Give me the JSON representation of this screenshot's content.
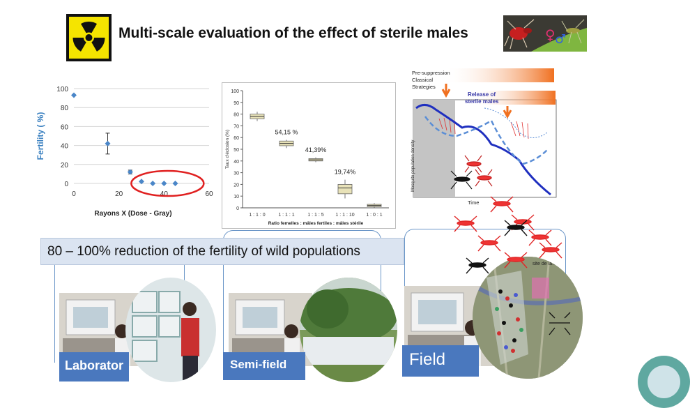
{
  "title": "Multi-scale evaluation of the effect of sterile males",
  "icons": {
    "radiation": "radiation-icon",
    "mosquito": "mosquito-icon"
  },
  "colors": {
    "accent": "#4a78be",
    "bracket": "#6a96c8",
    "banner": "#dbe4f1",
    "highlight_circle": "#e02020",
    "decline_line": "#1f2fbf",
    "dashed_line": "#5b8ed6",
    "arrow_orange": "#f07020"
  },
  "chart_fertility": {
    "chart_data": {
      "type": "scatter",
      "x": [
        0,
        15,
        25,
        30,
        35,
        40,
        45
      ],
      "y": [
        93,
        42,
        12,
        2,
        0,
        0,
        0
      ],
      "error": [
        0,
        11,
        2,
        0,
        0,
        0,
        0
      ],
      "xlim": [
        0,
        60
      ],
      "ylim": [
        0,
        100
      ],
      "xticks": [
        "0",
        "20",
        "40",
        "60"
      ],
      "yticks": [
        "0",
        "20",
        "40",
        "60",
        "80",
        "100"
      ],
      "xlabel": "Rayons X (Dose - Gray)",
      "ylabel": "Fertility ( %)",
      "grid": true,
      "highlight": "red ellipse around doses 35-45"
    }
  },
  "chart_hatching": {
    "chart_data": {
      "type": "box",
      "categories": [
        "1 : 1 : 0",
        "1 : 1 : 1",
        "1 : 1 : 5",
        "1 : 1 : 10",
        "1 : 0 : 1"
      ],
      "medians": [
        78,
        55,
        41,
        17,
        2
      ],
      "q1": [
        76,
        53,
        40,
        12,
        1
      ],
      "q3": [
        80,
        57,
        42,
        20,
        3
      ],
      "min": [
        74,
        51,
        39,
        8,
        0
      ],
      "max": [
        82,
        58,
        43,
        24,
        4
      ],
      "annotations": [
        "",
        "54,15 %",
        "41,39%",
        "19,74%",
        ""
      ],
      "ylim": [
        0,
        100
      ],
      "yticks": [
        "0",
        "10",
        "20",
        "30",
        "40",
        "50",
        "60",
        "70",
        "80",
        "90",
        "100"
      ],
      "ylabel": "Taux d'éclosion (%)",
      "xlabel": "Ratio femelles : mâles fertiles : mâles stérile"
    }
  },
  "diagram": {
    "labels": {
      "pre_suppression": "Pre-suppression",
      "classical": "Classical",
      "strategies": "Strategies",
      "release_of": "Release of",
      "sterile_males": "sterile males",
      "y_axis": "Mosquito population density",
      "x_axis": "Time"
    },
    "map_label": "site de la..."
  },
  "banner": {
    "text": "80 – 100% reduction of the fertility of wild populations"
  },
  "panels": {
    "laboratory": "Laborator",
    "semi_field": "Semi-field",
    "field": "Field"
  }
}
